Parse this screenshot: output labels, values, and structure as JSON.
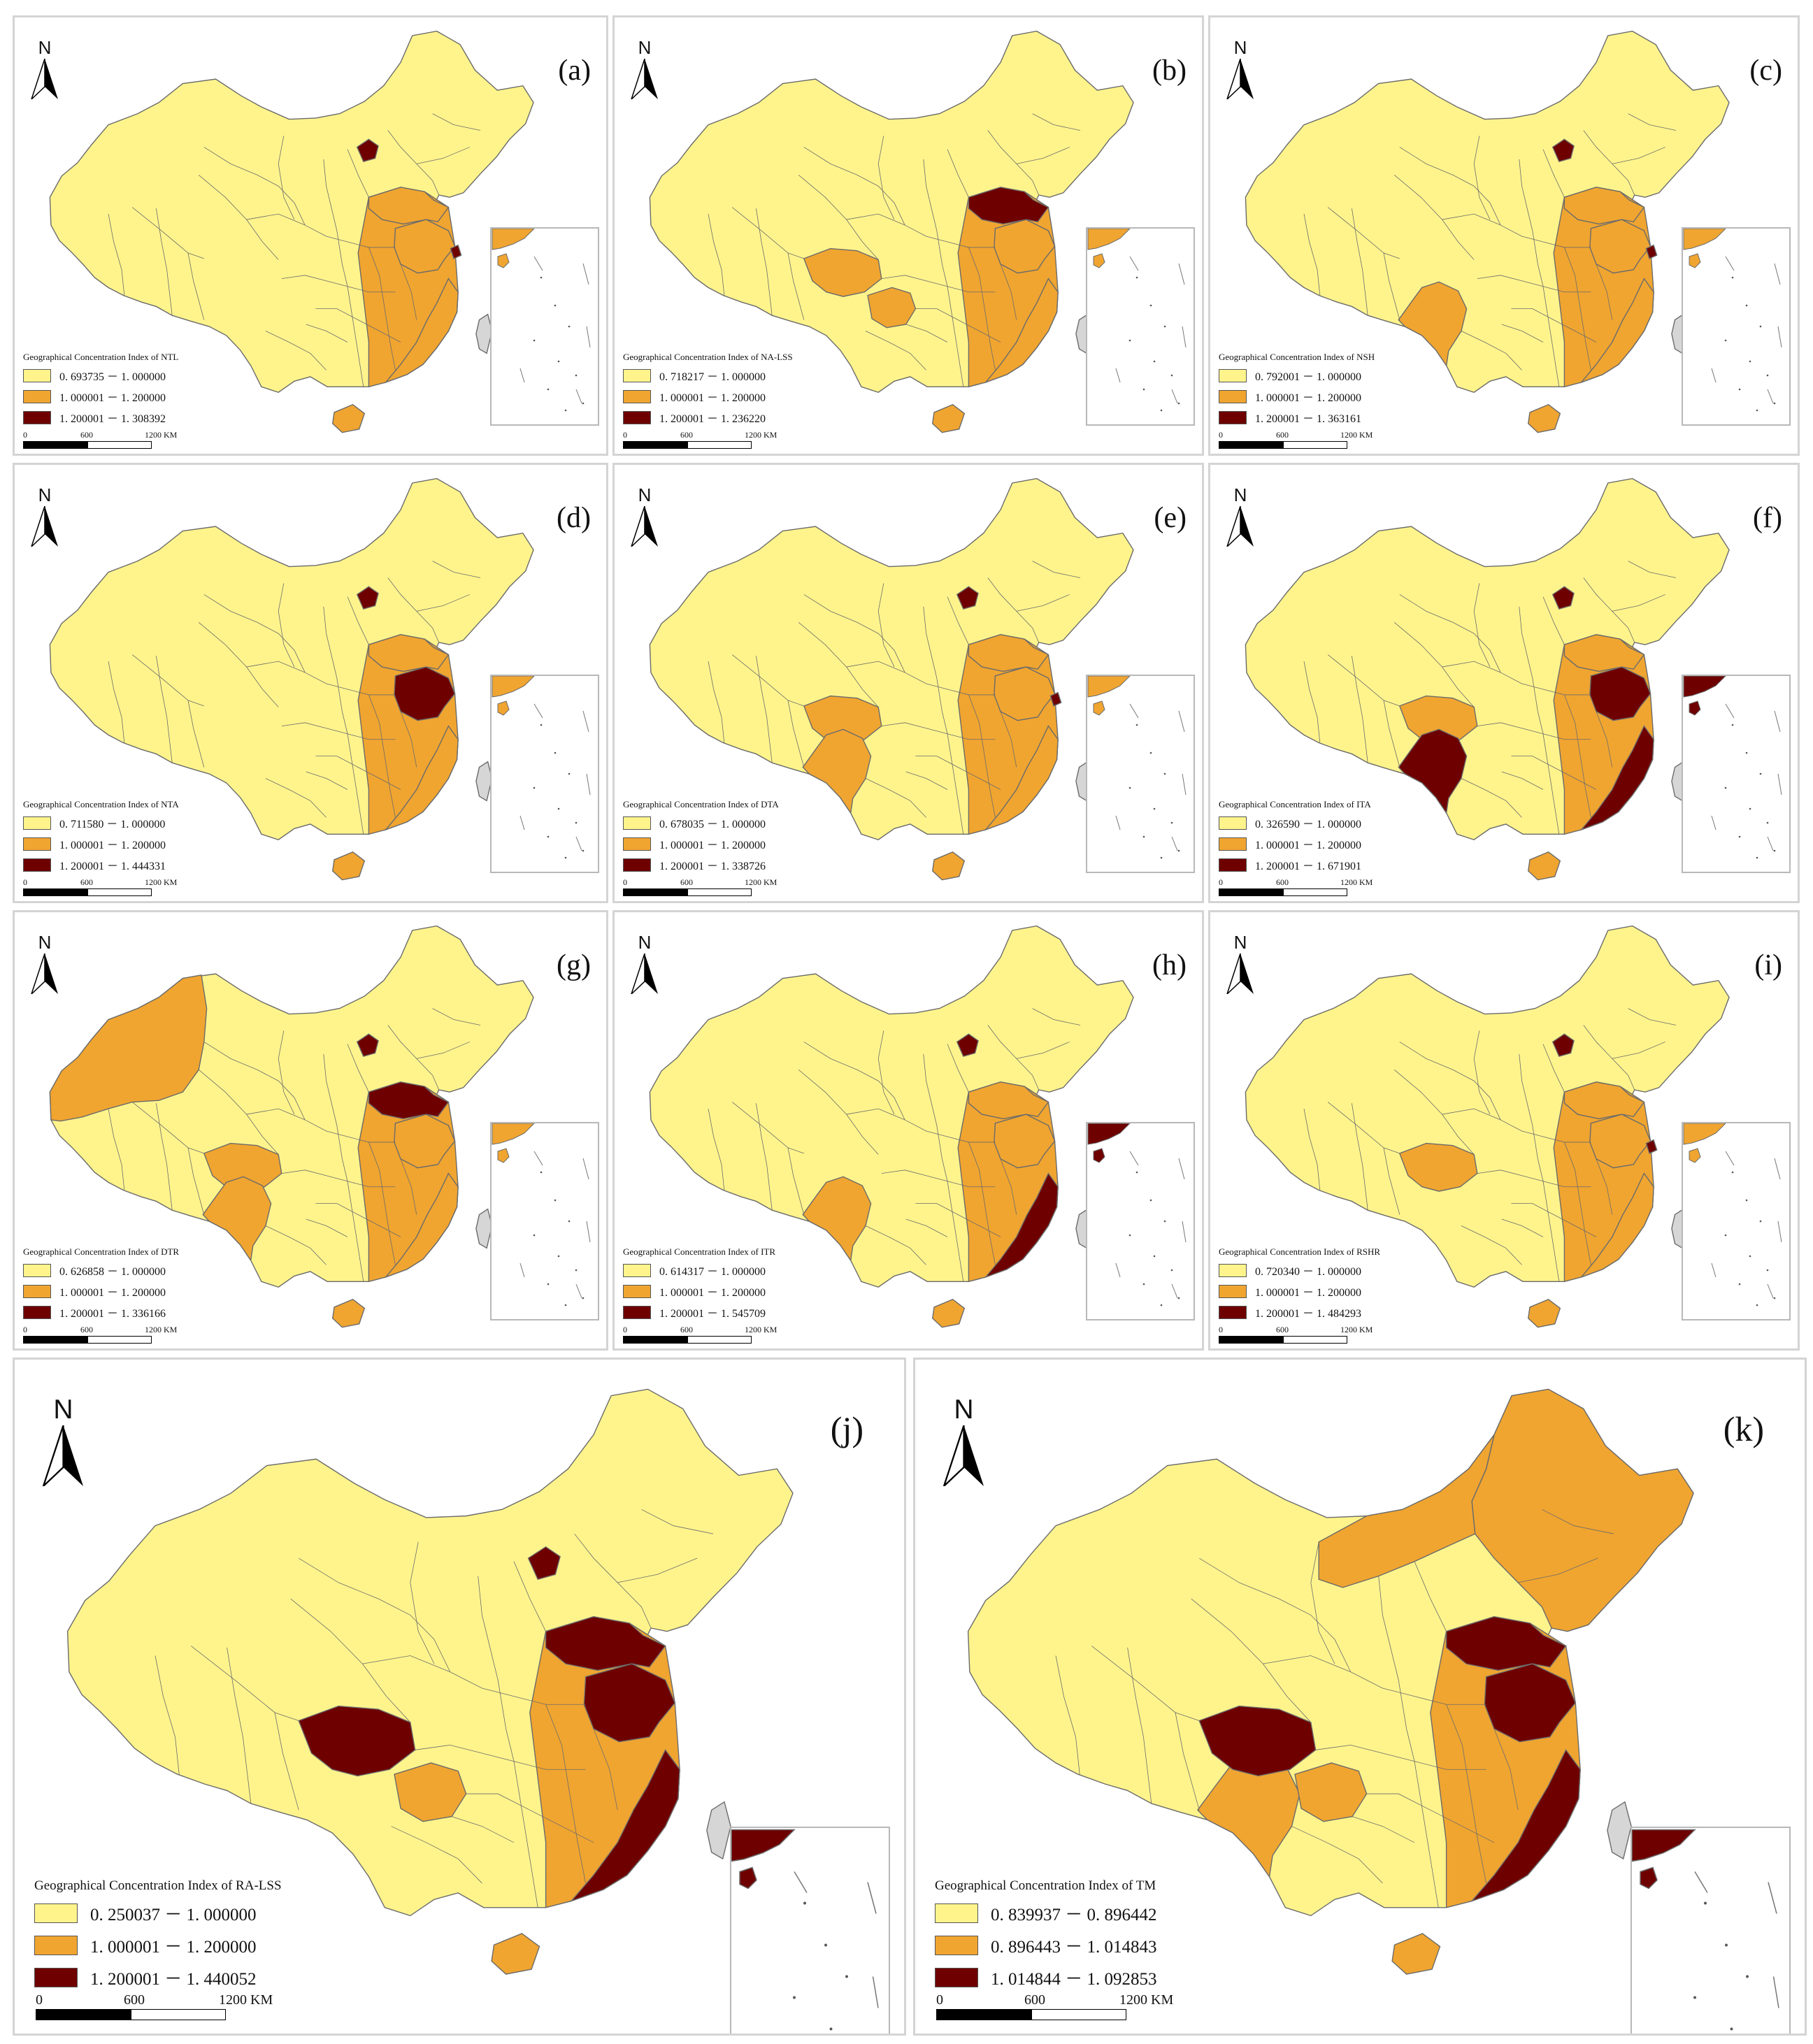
{
  "colors": {
    "low": "#FFF48C",
    "mid": "#F0A530",
    "high": "#6E0000",
    "border": "#6b6b6b",
    "taiwan": "#d6d6d6"
  },
  "north_label": "N",
  "panels": [
    {
      "id": "a",
      "label": "(a)",
      "legend_title": "Geographical Concentration Index of NTL",
      "classes": [
        "0. 693735 － 1. 000000",
        "1. 000001 － 1. 200000",
        "1. 200001 － 1. 308392"
      ],
      "scale": [
        "0",
        "600",
        "1200 KM"
      ],
      "inset_high": false
    },
    {
      "id": "b",
      "label": "(b)",
      "legend_title": "Geographical Concentration Index of NA-LSS",
      "classes": [
        "0. 718217 － 1. 000000",
        "1. 000001 － 1. 200000",
        "1. 200001 － 1. 236220"
      ],
      "scale": [
        "0",
        "600",
        "1200 KM"
      ],
      "inset_high": false
    },
    {
      "id": "c",
      "label": "(c)",
      "legend_title": "Geographical Concentration Index of NSH",
      "classes": [
        "0. 792001 － 1. 000000",
        "1. 000001 － 1. 200000",
        "1. 200001 － 1. 363161"
      ],
      "scale": [
        "0",
        "600",
        "1200 KM"
      ],
      "inset_high": false
    },
    {
      "id": "d",
      "label": "(d)",
      "legend_title": "Geographical Concentration Index of NTA",
      "classes": [
        "0. 711580 － 1. 000000",
        "1. 000001 － 1. 200000",
        "1. 200001 － 1. 444331"
      ],
      "scale": [
        "0",
        "600",
        "1200 KM"
      ],
      "inset_high": false
    },
    {
      "id": "e",
      "label": "(e)",
      "legend_title": "Geographical Concentration Index of DTA",
      "classes": [
        "0. 678035 － 1. 000000",
        "1. 000001 － 1. 200000",
        "1. 200001 － 1. 338726"
      ],
      "scale": [
        "0",
        "600",
        "1200 KM"
      ],
      "inset_high": false
    },
    {
      "id": "f",
      "label": "(f)",
      "legend_title": "Geographical Concentration Index of ITA",
      "classes": [
        "0. 326590 － 1. 000000",
        "1. 000001 － 1. 200000",
        "1. 200001 － 1. 671901"
      ],
      "scale": [
        "0",
        "600",
        "1200 KM"
      ],
      "inset_high": true
    },
    {
      "id": "g",
      "label": "(g)",
      "legend_title": "Geographical Concentration Index of DTR",
      "classes": [
        "0. 626858 － 1. 000000",
        "1. 000001 － 1. 200000",
        "1. 200001 － 1. 336166"
      ],
      "scale": [
        "0",
        "600",
        "1200 KM"
      ],
      "inset_high": false
    },
    {
      "id": "h",
      "label": "(h)",
      "legend_title": "Geographical Concentration Index of ITR",
      "classes": [
        "0. 614317 － 1. 000000",
        "1. 000001 － 1. 200000",
        "1. 200001 － 1. 545709"
      ],
      "scale": [
        "0",
        "600",
        "1200 KM"
      ],
      "inset_high": true
    },
    {
      "id": "i",
      "label": "(i)",
      "legend_title": "Geographical Concentration Index of RSHR",
      "classes": [
        "0. 720340 － 1. 000000",
        "1. 000001 － 1. 200000",
        "1. 200001 － 1. 484293"
      ],
      "scale": [
        "0",
        "600",
        "1200 KM"
      ],
      "inset_high": false
    },
    {
      "id": "j",
      "label": "(j)",
      "legend_title": "Geographical Concentration Index of RA-LSS",
      "classes": [
        "0. 250037 － 1. 000000",
        "1. 000001 － 1. 200000",
        "1. 200001 － 1. 440052"
      ],
      "scale": [
        "0",
        "600",
        "1200 KM"
      ],
      "inset_high": true
    },
    {
      "id": "k",
      "label": "(k)",
      "legend_title": "Geographical Concentration Index of TM",
      "classes": [
        "0. 839937 － 0. 896442",
        "0. 896443 － 1. 014843",
        "1. 014844 － 1. 092853"
      ],
      "scale": [
        "0",
        "600",
        "1200 KM"
      ],
      "inset_high": true
    }
  ]
}
